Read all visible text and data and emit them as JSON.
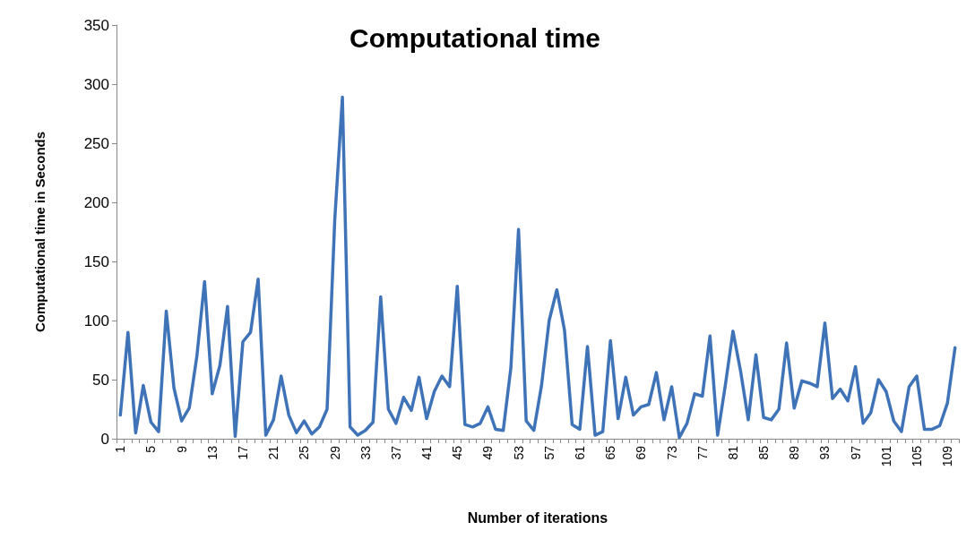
{
  "chart_data": {
    "type": "line",
    "title": "Computational time",
    "xlabel": "Number of iterations",
    "ylabel": "Computational time in Seconds",
    "categories": [
      "1",
      null,
      null,
      null,
      "5",
      null,
      null,
      null,
      "9",
      null,
      null,
      null,
      "13",
      null,
      null,
      null,
      "17",
      null,
      null,
      null,
      "21",
      null,
      null,
      null,
      "25",
      null,
      null,
      null,
      "29",
      null,
      null,
      null,
      "33",
      null,
      null,
      null,
      "37",
      null,
      null,
      null,
      "41",
      null,
      null,
      null,
      "45",
      null,
      null,
      null,
      "49",
      null,
      null,
      null,
      "53",
      null,
      null,
      null,
      "57",
      null,
      null,
      null,
      "61",
      null,
      null,
      null,
      "65",
      null,
      null,
      null,
      "69",
      null,
      null,
      null,
      "73",
      null,
      null,
      null,
      "77",
      null,
      null,
      null,
      "81",
      null,
      null,
      null,
      "85",
      null,
      null,
      null,
      "89",
      null,
      null,
      null,
      "93",
      null,
      null,
      null,
      "97",
      null,
      null,
      null,
      "101",
      null,
      null,
      null,
      "105",
      null,
      null,
      null,
      "109",
      null
    ],
    "series": [
      {
        "color": "#3f73b8",
        "values": [
          20,
          90,
          5,
          45,
          14,
          6,
          108,
          43,
          15,
          26,
          70,
          133,
          38,
          62,
          112,
          2,
          82,
          90,
          135,
          3,
          16,
          53,
          20,
          5,
          15,
          4,
          10,
          25,
          185,
          289,
          10,
          3,
          7,
          14,
          120,
          25,
          13,
          35,
          24,
          52,
          17,
          40,
          53,
          44,
          129,
          12,
          10,
          13,
          27,
          8,
          7,
          60,
          177,
          15,
          7,
          45,
          100,
          126,
          92,
          12,
          8,
          78,
          3,
          6,
          83,
          17,
          52,
          20,
          27,
          29,
          56,
          16,
          44,
          1,
          13,
          38,
          36,
          87,
          3,
          45,
          91,
          57,
          16,
          71,
          18,
          16,
          25,
          81,
          26,
          49,
          47,
          44,
          98,
          34,
          42,
          32,
          61,
          13,
          22,
          50,
          40,
          15,
          6,
          44,
          53,
          8,
          8,
          11,
          30,
          77
        ]
      }
    ],
    "ylim": [
      0,
      350
    ],
    "yticks": [
      0,
      50,
      100,
      150,
      200,
      250,
      300,
      350
    ],
    "marker": "none",
    "line_style": "solid"
  }
}
